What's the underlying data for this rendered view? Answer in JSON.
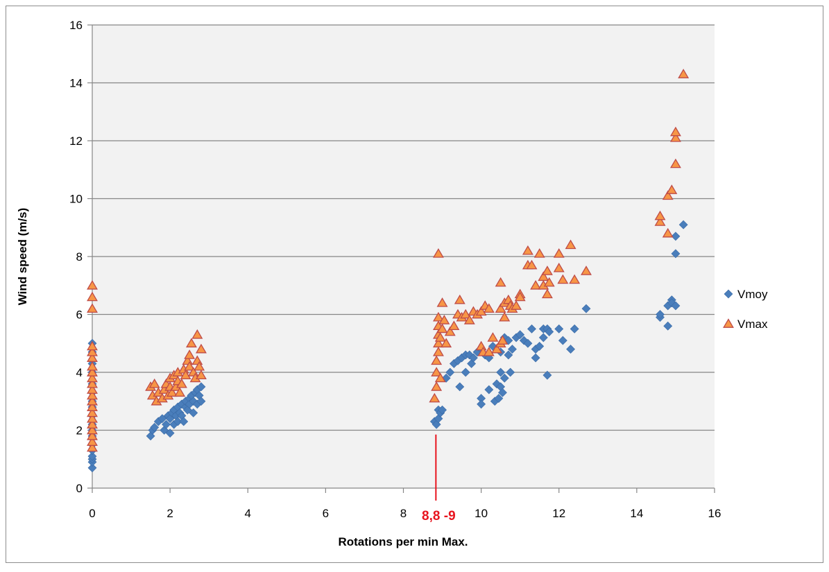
{
  "chart_data": {
    "type": "scatter",
    "title": "",
    "xlabel": "Rotations per min Max.",
    "ylabel": "Wind speed (m/s)",
    "xlim": [
      0,
      16
    ],
    "ylim": [
      0,
      16
    ],
    "x_ticks": [
      "0",
      "2",
      "4",
      "6",
      "8",
      "10",
      "12",
      "14",
      "16"
    ],
    "y_ticks": [
      "0",
      "2",
      "4",
      "6",
      "8",
      "10",
      "12",
      "14",
      "16"
    ],
    "grid": "horizontal",
    "plot_background": "#f2f2f2",
    "legend_position": "right",
    "annotation": {
      "text": "8,8 -9",
      "x": 8.8,
      "color": "#e8141e"
    },
    "series": [
      {
        "name": "Vmoy",
        "color": "#4a7ebb",
        "marker": "diamond",
        "points": [
          [
            0,
            0.7
          ],
          [
            0,
            0.9
          ],
          [
            0,
            1.0
          ],
          [
            0,
            1.1
          ],
          [
            0,
            1.3
          ],
          [
            0,
            1.5
          ],
          [
            0,
            1.8
          ],
          [
            0,
            2.0
          ],
          [
            0,
            2.2
          ],
          [
            0,
            2.5
          ],
          [
            0,
            2.8
          ],
          [
            0,
            3.0
          ],
          [
            0,
            3.3
          ],
          [
            0,
            3.6
          ],
          [
            0,
            4.0
          ],
          [
            0,
            4.3
          ],
          [
            0,
            4.7
          ],
          [
            0,
            5.0
          ],
          [
            1.5,
            1.8
          ],
          [
            1.55,
            2.0
          ],
          [
            1.6,
            2.1
          ],
          [
            1.7,
            2.3
          ],
          [
            1.8,
            2.4
          ],
          [
            1.85,
            2.0
          ],
          [
            1.9,
            2.2
          ],
          [
            1.95,
            2.5
          ],
          [
            2.0,
            1.9
          ],
          [
            2.0,
            2.4
          ],
          [
            2.05,
            2.6
          ],
          [
            2.1,
            2.2
          ],
          [
            2.1,
            2.7
          ],
          [
            2.15,
            2.5
          ],
          [
            2.2,
            2.8
          ],
          [
            2.2,
            2.3
          ],
          [
            2.25,
            2.6
          ],
          [
            2.3,
            2.9
          ],
          [
            2.3,
            2.5
          ],
          [
            2.35,
            2.3
          ],
          [
            2.4,
            2.8
          ],
          [
            2.4,
            3.0
          ],
          [
            2.45,
            2.7
          ],
          [
            2.5,
            3.1
          ],
          [
            2.5,
            2.9
          ],
          [
            2.55,
            3.2
          ],
          [
            2.6,
            2.6
          ],
          [
            2.6,
            3.0
          ],
          [
            2.65,
            3.3
          ],
          [
            2.7,
            2.9
          ],
          [
            2.7,
            3.4
          ],
          [
            2.75,
            3.2
          ],
          [
            2.8,
            3.0
          ],
          [
            2.8,
            3.5
          ],
          [
            8.8,
            2.3
          ],
          [
            8.85,
            2.2
          ],
          [
            8.9,
            2.4
          ],
          [
            8.9,
            2.7
          ],
          [
            8.95,
            2.6
          ],
          [
            9.0,
            2.7
          ],
          [
            9.1,
            3.8
          ],
          [
            9.2,
            4.0
          ],
          [
            9.3,
            4.3
          ],
          [
            9.4,
            4.4
          ],
          [
            9.45,
            3.5
          ],
          [
            9.5,
            4.5
          ],
          [
            9.6,
            4.6
          ],
          [
            9.6,
            4.0
          ],
          [
            9.7,
            4.6
          ],
          [
            9.75,
            4.3
          ],
          [
            9.8,
            4.5
          ],
          [
            9.9,
            4.7
          ],
          [
            10.0,
            4.8
          ],
          [
            10.0,
            3.1
          ],
          [
            10.0,
            2.9
          ],
          [
            10.1,
            4.6
          ],
          [
            10.2,
            4.5
          ],
          [
            10.2,
            3.4
          ],
          [
            10.3,
            4.9
          ],
          [
            10.35,
            3.0
          ],
          [
            10.4,
            3.6
          ],
          [
            10.45,
            3.1
          ],
          [
            10.5,
            3.5
          ],
          [
            10.5,
            4.0
          ],
          [
            10.5,
            4.7
          ],
          [
            10.55,
            3.3
          ],
          [
            10.6,
            5.2
          ],
          [
            10.6,
            3.8
          ],
          [
            10.7,
            5.1
          ],
          [
            10.7,
            4.6
          ],
          [
            10.75,
            4.0
          ],
          [
            10.8,
            4.8
          ],
          [
            10.9,
            5.2
          ],
          [
            11.0,
            5.3
          ],
          [
            11.1,
            5.1
          ],
          [
            11.2,
            5.0
          ],
          [
            11.3,
            5.5
          ],
          [
            11.4,
            4.8
          ],
          [
            11.4,
            4.5
          ],
          [
            11.5,
            4.9
          ],
          [
            11.6,
            5.2
          ],
          [
            11.6,
            5.5
          ],
          [
            11.7,
            5.5
          ],
          [
            11.7,
            3.9
          ],
          [
            11.75,
            5.4
          ],
          [
            12.0,
            5.5
          ],
          [
            12.1,
            5.1
          ],
          [
            12.3,
            4.8
          ],
          [
            12.4,
            5.5
          ],
          [
            12.7,
            6.2
          ],
          [
            14.6,
            5.9
          ],
          [
            14.6,
            6.0
          ],
          [
            14.8,
            5.6
          ],
          [
            14.8,
            6.3
          ],
          [
            14.9,
            6.5
          ],
          [
            14.9,
            6.4
          ],
          [
            15.0,
            6.3
          ],
          [
            15.0,
            8.1
          ],
          [
            15.0,
            8.7
          ],
          [
            15.2,
            9.1
          ]
        ]
      },
      {
        "name": "Vmax",
        "color": "#f79646",
        "stroke": "#be4b48",
        "marker": "triangle",
        "points": [
          [
            0,
            1.4
          ],
          [
            0,
            1.6
          ],
          [
            0,
            1.8
          ],
          [
            0,
            2.0
          ],
          [
            0,
            2.2
          ],
          [
            0,
            2.4
          ],
          [
            0,
            2.6
          ],
          [
            0,
            2.8
          ],
          [
            0,
            3.0
          ],
          [
            0,
            3.2
          ],
          [
            0,
            3.4
          ],
          [
            0,
            3.6
          ],
          [
            0,
            3.8
          ],
          [
            0,
            4.0
          ],
          [
            0,
            4.2
          ],
          [
            0,
            4.5
          ],
          [
            0,
            4.7
          ],
          [
            0,
            4.9
          ],
          [
            0,
            6.2
          ],
          [
            0,
            6.6
          ],
          [
            0,
            7.0
          ],
          [
            1.5,
            3.5
          ],
          [
            1.55,
            3.2
          ],
          [
            1.6,
            3.6
          ],
          [
            1.65,
            3.0
          ],
          [
            1.7,
            3.3
          ],
          [
            1.8,
            3.1
          ],
          [
            1.85,
            3.4
          ],
          [
            1.9,
            3.6
          ],
          [
            1.95,
            3.2
          ],
          [
            2.0,
            3.5
          ],
          [
            2.0,
            3.8
          ],
          [
            2.05,
            3.3
          ],
          [
            2.1,
            3.9
          ],
          [
            2.15,
            3.5
          ],
          [
            2.2,
            3.7
          ],
          [
            2.2,
            4.0
          ],
          [
            2.25,
            3.3
          ],
          [
            2.3,
            3.6
          ],
          [
            2.35,
            4.1
          ],
          [
            2.4,
            3.9
          ],
          [
            2.45,
            4.4
          ],
          [
            2.5,
            4.2
          ],
          [
            2.5,
            4.6
          ],
          [
            2.55,
            5.0
          ],
          [
            2.6,
            4.0
          ],
          [
            2.65,
            3.8
          ],
          [
            2.7,
            4.4
          ],
          [
            2.7,
            5.3
          ],
          [
            2.75,
            4.2
          ],
          [
            2.8,
            3.9
          ],
          [
            2.8,
            4.8
          ],
          [
            8.8,
            3.1
          ],
          [
            8.85,
            3.5
          ],
          [
            8.85,
            4.0
          ],
          [
            8.85,
            4.4
          ],
          [
            8.9,
            4.7
          ],
          [
            8.9,
            5.0
          ],
          [
            8.9,
            5.3
          ],
          [
            8.9,
            5.6
          ],
          [
            8.9,
            5.9
          ],
          [
            8.9,
            8.1
          ],
          [
            8.95,
            3.8
          ],
          [
            8.95,
            5.2
          ],
          [
            9.0,
            5.5
          ],
          [
            9.0,
            6.4
          ],
          [
            9.05,
            5.8
          ],
          [
            9.1,
            5.0
          ],
          [
            9.2,
            5.4
          ],
          [
            9.3,
            5.6
          ],
          [
            9.4,
            6.0
          ],
          [
            9.45,
            6.5
          ],
          [
            9.5,
            5.9
          ],
          [
            9.6,
            6.0
          ],
          [
            9.7,
            5.8
          ],
          [
            9.8,
            6.1
          ],
          [
            9.9,
            6.0
          ],
          [
            10.0,
            6.1
          ],
          [
            10.0,
            4.9
          ],
          [
            10.05,
            4.7
          ],
          [
            10.1,
            6.3
          ],
          [
            10.2,
            6.2
          ],
          [
            10.2,
            4.7
          ],
          [
            10.3,
            5.2
          ],
          [
            10.4,
            4.8
          ],
          [
            10.5,
            5.0
          ],
          [
            10.5,
            6.2
          ],
          [
            10.5,
            7.1
          ],
          [
            10.55,
            5.1
          ],
          [
            10.6,
            6.4
          ],
          [
            10.6,
            5.9
          ],
          [
            10.7,
            6.5
          ],
          [
            10.75,
            6.3
          ],
          [
            10.8,
            6.2
          ],
          [
            10.9,
            6.3
          ],
          [
            11.0,
            6.7
          ],
          [
            11.0,
            6.6
          ],
          [
            11.2,
            8.2
          ],
          [
            11.2,
            7.7
          ],
          [
            11.3,
            7.7
          ],
          [
            11.4,
            7.0
          ],
          [
            11.5,
            8.1
          ],
          [
            11.6,
            7.3
          ],
          [
            11.6,
            7.0
          ],
          [
            11.7,
            7.5
          ],
          [
            11.7,
            6.7
          ],
          [
            11.75,
            7.1
          ],
          [
            12.0,
            8.1
          ],
          [
            12.0,
            7.6
          ],
          [
            12.1,
            7.2
          ],
          [
            12.3,
            8.4
          ],
          [
            12.4,
            7.2
          ],
          [
            12.7,
            7.5
          ],
          [
            14.6,
            9.2
          ],
          [
            14.6,
            9.4
          ],
          [
            14.8,
            8.8
          ],
          [
            14.8,
            10.1
          ],
          [
            14.9,
            10.3
          ],
          [
            15.0,
            11.2
          ],
          [
            15.0,
            12.1
          ],
          [
            15.0,
            12.3
          ],
          [
            15.2,
            14.3
          ]
        ]
      }
    ]
  }
}
